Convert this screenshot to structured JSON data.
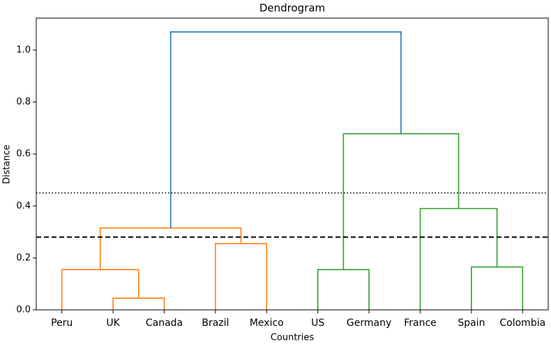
{
  "chart_data": {
    "type": "dendrogram",
    "title": "Dendrogram",
    "xlabel": "Countries",
    "ylabel": "Distance",
    "ylim": [
      0,
      1.123
    ],
    "yticks": [
      {
        "value": 0,
        "label": "0.0"
      },
      0.2,
      0.4,
      0.6,
      0.8,
      {
        "value": 1,
        "label": "1.0"
      }
    ],
    "tree": {
      "height": 1.07,
      "color": "#1f77b4",
      "children": [
        {
          "height": 0.315,
          "color": "#ff7f0e",
          "children": [
            {
              "height": 0.155,
              "color": "#ff7f0e",
              "children": [
                {
                  "label": "Peru"
                },
                {
                  "height": 0.045,
                  "color": "#ff7f0e",
                  "children": [
                    {
                      "label": "UK"
                    },
                    {
                      "label": "Canada"
                    }
                  ]
                }
              ]
            },
            {
              "height": 0.255,
              "color": "#ff7f0e",
              "children": [
                {
                  "label": "Brazil"
                },
                {
                  "label": "Mexico"
                }
              ]
            }
          ]
        },
        {
          "height": 0.678,
          "color": "#2ca02c",
          "children": [
            {
              "height": 0.155,
              "color": "#2ca02c",
              "children": [
                {
                  "label": "US"
                },
                {
                  "label": "Germany"
                }
              ]
            },
            {
              "height": 0.39,
              "color": "#2ca02c",
              "children": [
                {
                  "label": "France"
                },
                {
                  "height": 0.165,
                  "color": "#2ca02c",
                  "children": [
                    {
                      "label": "Spain"
                    },
                    {
                      "label": "Colombia"
                    }
                  ]
                }
              ]
            }
          ]
        }
      ]
    },
    "hlines": [
      {
        "value": 0.45,
        "style": "dotted",
        "color": "#000000"
      },
      {
        "value": 0.28,
        "style": "dashed",
        "color": "#000000"
      }
    ]
  }
}
